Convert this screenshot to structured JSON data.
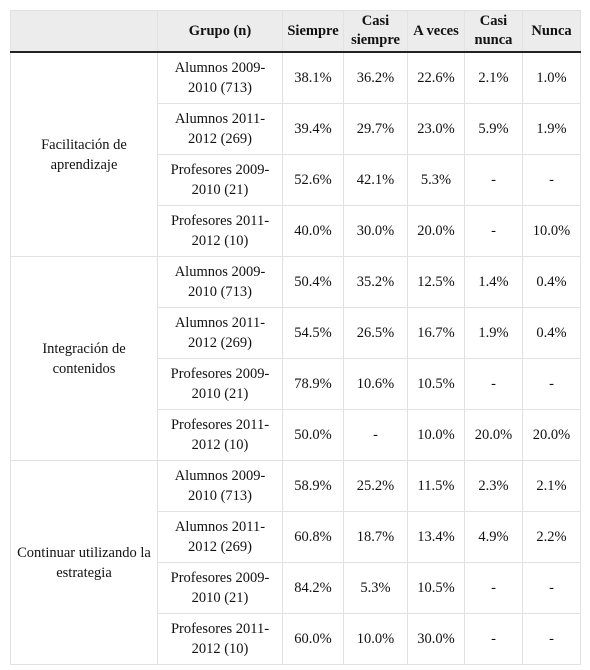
{
  "headers": [
    "",
    "Grupo (n)",
    "Siempre",
    "Casi siempre",
    "A veces",
    "Casi nunca",
    "Nunca"
  ],
  "sections": [
    {
      "category": "Facilitación de aprendizaje",
      "rows": [
        {
          "group": "Alumnos 2009-2010 (713)",
          "values": [
            "38.1%",
            "36.2%",
            "22.6%",
            "2.1%",
            "1.0%"
          ]
        },
        {
          "group": "Alumnos 2011-2012 (269)",
          "values": [
            "39.4%",
            "29.7%",
            "23.0%",
            "5.9%",
            "1.9%"
          ]
        },
        {
          "group": "Profesores 2009-2010 (21)",
          "values": [
            "52.6%",
            "42.1%",
            "5.3%",
            "-",
            "-"
          ]
        },
        {
          "group": "Profesores 2011-2012 (10)",
          "values": [
            "40.0%",
            "30.0%",
            "20.0%",
            "-",
            "10.0%"
          ]
        }
      ]
    },
    {
      "category": "Integración de contenidos",
      "rows": [
        {
          "group": "Alumnos 2009-2010 (713)",
          "values": [
            "50.4%",
            "35.2%",
            "12.5%",
            "1.4%",
            "0.4%"
          ]
        },
        {
          "group": "Alumnos 2011-2012 (269)",
          "values": [
            "54.5%",
            "26.5%",
            "16.7%",
            "1.9%",
            "0.4%"
          ]
        },
        {
          "group": "Profesores 2009-2010 (21)",
          "values": [
            "78.9%",
            "10.6%",
            "10.5%",
            "-",
            "-"
          ]
        },
        {
          "group": "Profesores 2011-2012 (10)",
          "values": [
            "50.0%",
            "-",
            "10.0%",
            "20.0%",
            "20.0%"
          ]
        }
      ]
    },
    {
      "category": "Continuar utilizando la estrategia",
      "rows": [
        {
          "group": "Alumnos 2009-2010 (713)",
          "values": [
            "58.9%",
            "25.2%",
            "11.5%",
            "2.3%",
            "2.1%"
          ]
        },
        {
          "group": "Alumnos 2011-2012 (269)",
          "values": [
            "60.8%",
            "18.7%",
            "13.4%",
            "4.9%",
            "2.2%"
          ]
        },
        {
          "group": "Profesores 2009-2010 (21)",
          "values": [
            "84.2%",
            "5.3%",
            "10.5%",
            "-",
            "-"
          ]
        },
        {
          "group": "Profesores 2011-2012 (10)",
          "values": [
            "60.0%",
            "10.0%",
            "30.0%",
            "-",
            "-"
          ]
        }
      ]
    }
  ]
}
